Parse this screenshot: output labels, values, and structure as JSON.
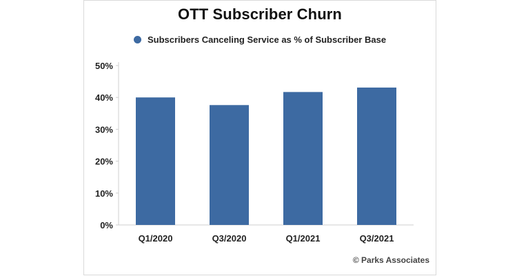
{
  "chart_data": {
    "type": "bar",
    "title": "OTT Subscriber Churn",
    "categories": [
      "Q1/2020",
      "Q3/2020",
      "Q1/2021",
      "Q3/2021"
    ],
    "series": [
      {
        "name": "Subscribers Canceling Service as % of Subscriber Base",
        "values": [
          40,
          37.6,
          41.7,
          43.1
        ],
        "color": "#3d6aa2"
      }
    ],
    "ylim": [
      0,
      50
    ],
    "yticks": [
      "0%",
      "10%",
      "20%",
      "30%",
      "40%",
      "50%"
    ],
    "ytick_values": [
      0,
      10,
      20,
      30,
      40,
      50
    ],
    "xlabel": "",
    "ylabel": "",
    "grid": false,
    "legend_position": "top-center"
  },
  "copyright": "© Parks Associates"
}
